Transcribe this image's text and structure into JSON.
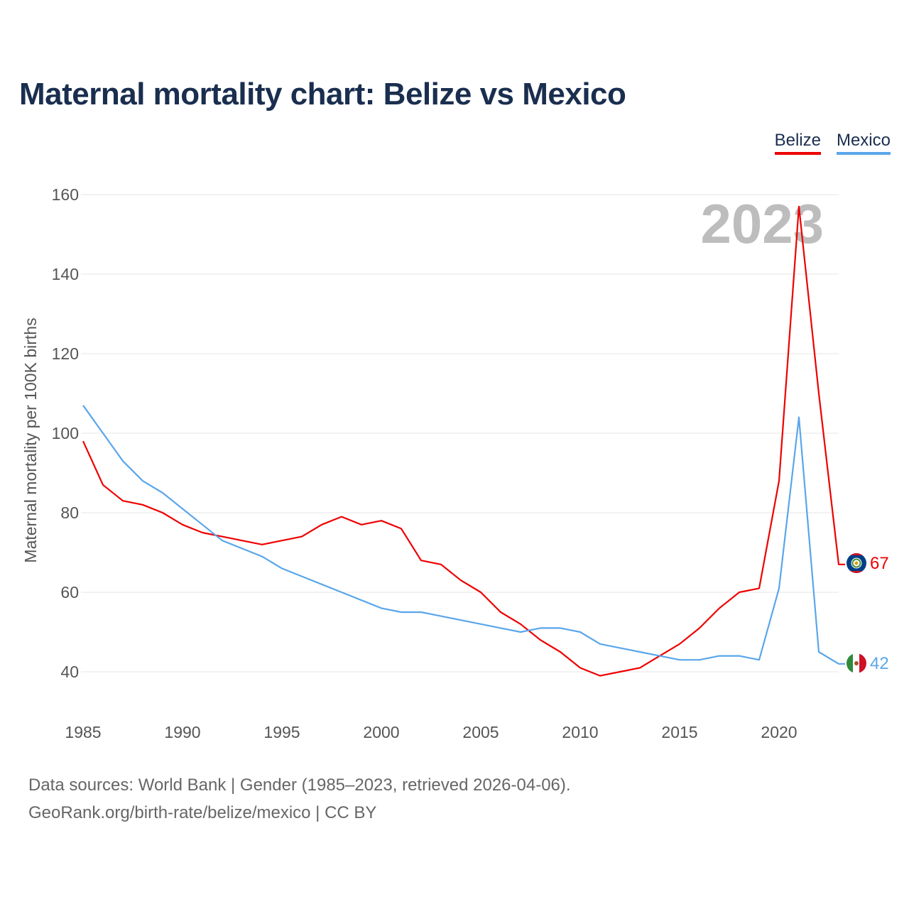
{
  "title": "Maternal mortality chart: Belize vs Mexico",
  "legend": [
    {
      "name": "Belize",
      "color": "#ee0000"
    },
    {
      "name": "Mexico",
      "color": "#5aa6ea"
    }
  ],
  "footer": {
    "line1": "Data sources: World Bank | Gender (1985–2023, retrieved 2026-04-06).",
    "line2": "GeoRank.org/birth-rate/belize/mexico | CC BY"
  },
  "chart_data": {
    "type": "line",
    "title": "Maternal mortality chart: Belize vs Mexico",
    "watermark_year": "2023",
    "xlabel": "",
    "ylabel": "Maternal mortality per 100K births",
    "xlim": [
      1985,
      2023
    ],
    "ylim": [
      30,
      165
    ],
    "x_ticks": [
      1985,
      1990,
      1995,
      2000,
      2005,
      2010,
      2015,
      2020
    ],
    "y_ticks": [
      40,
      60,
      80,
      100,
      120,
      140,
      160
    ],
    "grid": true,
    "legend_position": "top-right",
    "x": [
      1985,
      1986,
      1987,
      1988,
      1989,
      1990,
      1991,
      1992,
      1993,
      1994,
      1995,
      1996,
      1997,
      1998,
      1999,
      2000,
      2001,
      2002,
      2003,
      2004,
      2005,
      2006,
      2007,
      2008,
      2009,
      2010,
      2011,
      2012,
      2013,
      2014,
      2015,
      2016,
      2017,
      2018,
      2019,
      2020,
      2021,
      2022,
      2023
    ],
    "series": [
      {
        "name": "Belize",
        "color": "#ee0000",
        "flag_icon": "belize-flag-icon",
        "end_label": "67",
        "values": [
          98,
          87,
          83,
          82,
          80,
          77,
          75,
          74,
          73,
          72,
          73,
          74,
          77,
          79,
          77,
          78,
          76,
          68,
          67,
          63,
          60,
          55,
          52,
          48,
          45,
          41,
          39,
          40,
          41,
          44,
          47,
          51,
          56,
          60,
          61,
          88,
          157,
          110,
          67
        ]
      },
      {
        "name": "Mexico",
        "color": "#5aa6ea",
        "flag_icon": "mexico-flag-icon",
        "end_label": "42",
        "values": [
          107,
          100,
          93,
          88,
          85,
          81,
          77,
          73,
          71,
          69,
          66,
          64,
          62,
          60,
          58,
          56,
          55,
          55,
          54,
          53,
          52,
          51,
          50,
          51,
          51,
          50,
          47,
          46,
          45,
          44,
          43,
          43,
          44,
          44,
          43,
          61,
          104,
          45,
          42
        ]
      }
    ]
  }
}
